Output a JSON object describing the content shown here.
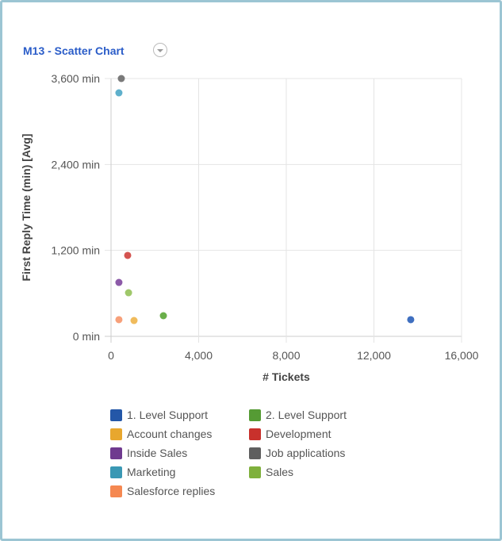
{
  "chart_data": {
    "type": "scatter",
    "title": "M13 - Scatter Chart",
    "xlabel": "# Tickets",
    "ylabel": "First Reply Time (min) [Avg]",
    "xlim": [
      0,
      16000
    ],
    "ylim": [
      0,
      3600
    ],
    "x_ticks": [
      "0",
      "4,000",
      "8,000",
      "12,000",
      "16,000"
    ],
    "x_tick_values": [
      0,
      4000,
      8000,
      12000,
      16000
    ],
    "y_ticks": [
      "0 min",
      "1,200 min",
      "2,400 min",
      "3,600 min"
    ],
    "y_tick_values": [
      0,
      1200,
      2400,
      3600
    ],
    "grid": true,
    "legend_position": "bottom",
    "series": [
      {
        "name": "1. Level Support",
        "color": "#2457a8",
        "point_color": "#3f6fc0",
        "x": 13680,
        "y": 233
      },
      {
        "name": "2. Level Support",
        "color": "#559b34",
        "point_color": "#6aaf4a",
        "x": 2390,
        "y": 288
      },
      {
        "name": "Account changes",
        "color": "#e8a72e",
        "point_color": "#f0bb5c",
        "x": 1050,
        "y": 221
      },
      {
        "name": "Development",
        "color": "#c8312c",
        "point_color": "#d45450",
        "x": 760,
        "y": 1130
      },
      {
        "name": "Inside Sales",
        "color": "#6f3a8f",
        "point_color": "#8c5aa8",
        "x": 360,
        "y": 753
      },
      {
        "name": "Job applications",
        "color": "#5f5f5f",
        "point_color": "#7a7a7a",
        "x": 470,
        "y": 3600
      },
      {
        "name": "Marketing",
        "color": "#3a98b4",
        "point_color": "#5fb0cc",
        "x": 360,
        "y": 3400
      },
      {
        "name": "Sales",
        "color": "#7fb03c",
        "point_color": "#9fc86a",
        "x": 800,
        "y": 609
      },
      {
        "name": "Salesforce replies",
        "color": "#f58851",
        "point_color": "#f7a07a",
        "x": 360,
        "y": 233
      }
    ]
  }
}
